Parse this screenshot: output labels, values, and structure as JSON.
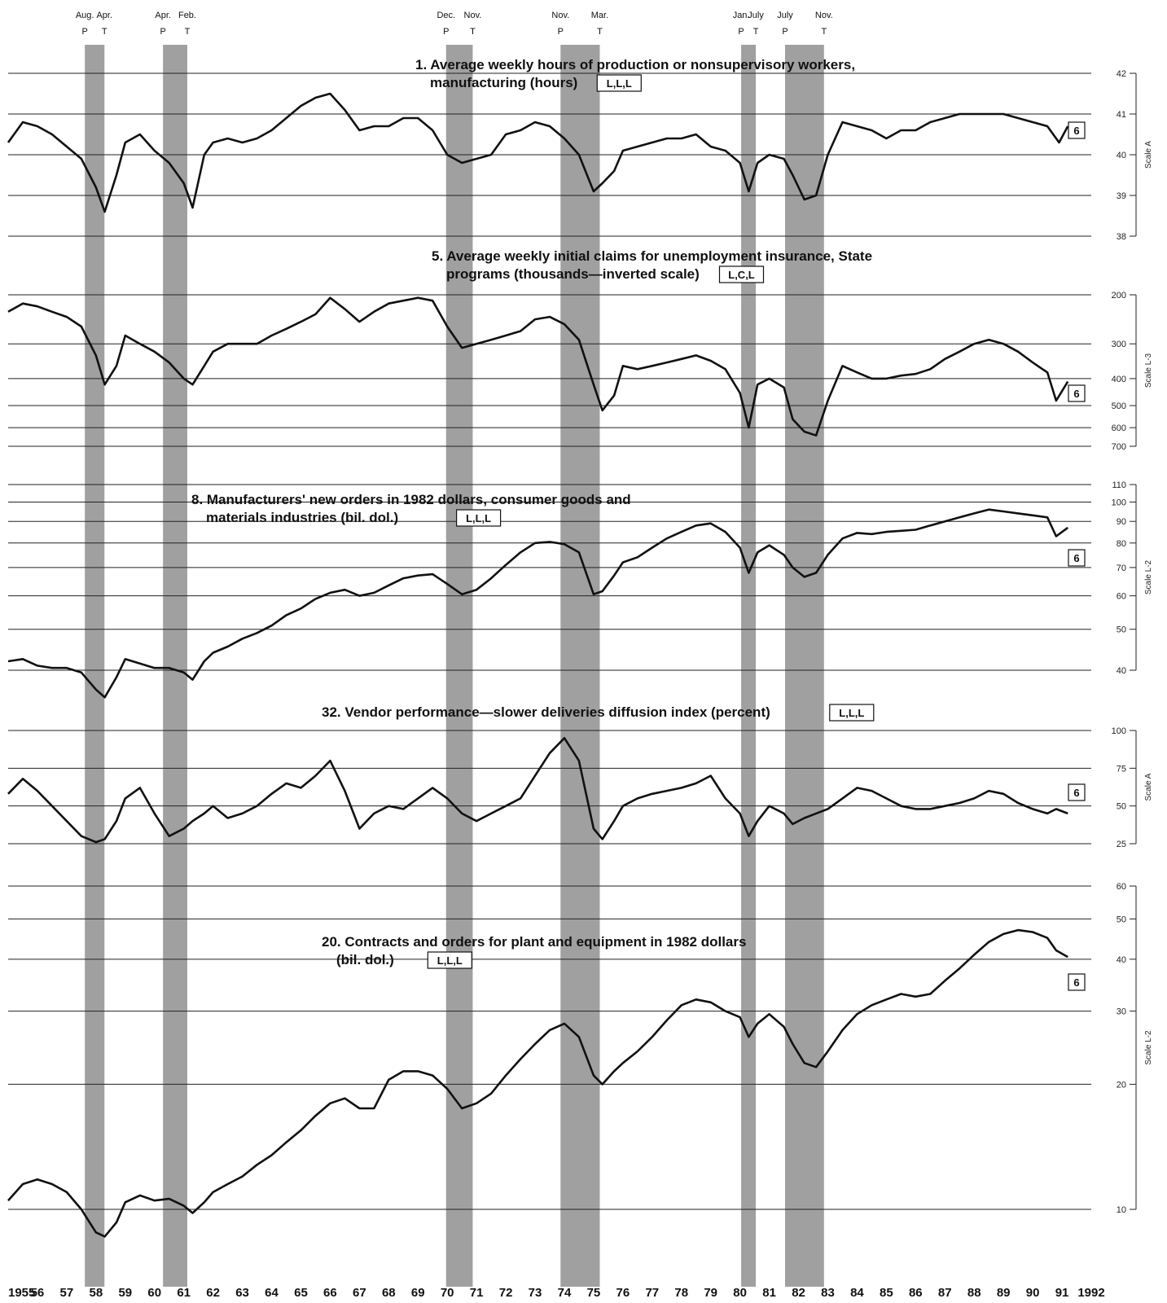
{
  "cycle_dates": [
    {
      "month": "Aug.",
      "type": "P",
      "year": 1957.62
    },
    {
      "month": "Apr.",
      "type": "T",
      "year": 1958.29
    },
    {
      "month": "Apr.",
      "type": "P",
      "year": 1960.29
    },
    {
      "month": "Feb.",
      "type": "T",
      "year": 1961.12
    },
    {
      "month": "Dec.",
      "type": "P",
      "year": 1969.96
    },
    {
      "month": "Nov.",
      "type": "T",
      "year": 1970.87
    },
    {
      "month": "Nov.",
      "type": "P",
      "year": 1973.87
    },
    {
      "month": "Mar.",
      "type": "T",
      "year": 1975.21
    },
    {
      "month": "Jan.",
      "type": "P",
      "year": 1980.04
    },
    {
      "month": "July",
      "type": "T",
      "year": 1980.54
    },
    {
      "month": "July",
      "type": "P",
      "year": 1981.54
    },
    {
      "month": "Nov.",
      "type": "T",
      "year": 1982.87
    }
  ],
  "recessions": [
    [
      1957.62,
      1958.29
    ],
    [
      1960.29,
      1961.12
    ],
    [
      1969.96,
      1970.87
    ],
    [
      1973.87,
      1975.21
    ],
    [
      1980.04,
      1980.54
    ],
    [
      1981.54,
      1982.87
    ]
  ],
  "x_axis_labels": [
    "1955",
    "56",
    "57",
    "58",
    "59",
    "60",
    "61",
    "62",
    "63",
    "64",
    "65",
    "66",
    "67",
    "68",
    "69",
    "70",
    "71",
    "72",
    "73",
    "74",
    "75",
    "76",
    "77",
    "78",
    "79",
    "80",
    "81",
    "82",
    "83",
    "84",
    "85",
    "86",
    "87",
    "88",
    "89",
    "90",
    "91",
    "1992"
  ],
  "chart_data": [
    {
      "type": "line",
      "title": "1. Average weekly hours of production or nonsupervisory workers, manufacturing (hours)",
      "title_lines": [
        "1. Average weekly hours of production or nonsupervisory workers,",
        "manufacturing (hours)"
      ],
      "code": "L,L,L",
      "scale_label": "Scale A",
      "scale_kind": "linear",
      "ylim": [
        38,
        42
      ],
      "y_ticks": [
        "42",
        "41",
        "40",
        "39",
        "38"
      ],
      "timing_box": "6",
      "x": [
        1955.0,
        1955.5,
        1956.0,
        1956.5,
        1957.0,
        1957.5,
        1958.0,
        1958.3,
        1958.7,
        1959.0,
        1959.5,
        1960.0,
        1960.5,
        1961.0,
        1961.3,
        1961.7,
        1962.0,
        1962.5,
        1963.0,
        1963.5,
        1964.0,
        1964.5,
        1965.0,
        1965.5,
        1966.0,
        1966.5,
        1967.0,
        1967.5,
        1968.0,
        1968.5,
        1969.0,
        1969.5,
        1970.0,
        1970.5,
        1971.0,
        1971.5,
        1972.0,
        1972.5,
        1973.0,
        1973.5,
        1974.0,
        1974.5,
        1975.0,
        1975.3,
        1975.7,
        1976.0,
        1976.5,
        1977.0,
        1977.5,
        1978.0,
        1978.5,
        1979.0,
        1979.5,
        1980.0,
        1980.3,
        1980.6,
        1981.0,
        1981.5,
        1981.8,
        1982.2,
        1982.6,
        1983.0,
        1983.5,
        1984.0,
        1984.5,
        1985.0,
        1985.5,
        1986.0,
        1986.5,
        1987.0,
        1987.5,
        1988.0,
        1988.5,
        1989.0,
        1989.5,
        1990.0,
        1990.5,
        1990.9,
        1991.2
      ],
      "values": [
        40.3,
        40.8,
        40.7,
        40.5,
        40.2,
        39.9,
        39.2,
        38.6,
        39.5,
        40.3,
        40.5,
        40.1,
        39.8,
        39.3,
        38.7,
        40.0,
        40.3,
        40.4,
        40.3,
        40.4,
        40.6,
        40.9,
        41.2,
        41.4,
        41.5,
        41.1,
        40.6,
        40.7,
        40.7,
        40.9,
        40.9,
        40.6,
        40.0,
        39.8,
        39.9,
        40.0,
        40.5,
        40.6,
        40.8,
        40.7,
        40.4,
        40.0,
        39.1,
        39.3,
        39.6,
        40.1,
        40.2,
        40.3,
        40.4,
        40.4,
        40.5,
        40.2,
        40.1,
        39.8,
        39.1,
        39.8,
        40.0,
        39.9,
        39.5,
        38.9,
        39.0,
        40.0,
        40.8,
        40.7,
        40.6,
        40.4,
        40.6,
        40.6,
        40.8,
        40.9,
        41.0,
        41.0,
        41.0,
        41.0,
        40.9,
        40.8,
        40.7,
        40.3,
        40.7
      ]
    },
    {
      "type": "line",
      "title": "5. Average weekly initial claims for unemployment insurance, State programs (thousands—inverted scale)",
      "title_lines": [
        "5. Average weekly initial claims for unemployment insurance, State",
        "programs (thousands—inverted scale)"
      ],
      "code": "L,C,L",
      "scale_label": "Scale L-3",
      "scale_kind": "log-inverted",
      "ylim": [
        200,
        700
      ],
      "y_ticks": [
        "200",
        "300",
        "400",
        "500",
        "600",
        "700"
      ],
      "timing_box": "6",
      "x": [
        1955.0,
        1955.5,
        1956.0,
        1956.5,
        1957.0,
        1957.5,
        1958.0,
        1958.3,
        1958.7,
        1959.0,
        1959.5,
        1960.0,
        1960.5,
        1961.0,
        1961.3,
        1961.7,
        1962.0,
        1962.5,
        1963.0,
        1963.5,
        1964.0,
        1964.5,
        1965.0,
        1965.5,
        1966.0,
        1966.5,
        1967.0,
        1967.5,
        1968.0,
        1968.5,
        1969.0,
        1969.5,
        1970.0,
        1970.5,
        1971.0,
        1971.5,
        1972.0,
        1972.5,
        1973.0,
        1973.5,
        1974.0,
        1974.5,
        1975.0,
        1975.3,
        1975.7,
        1976.0,
        1976.5,
        1977.0,
        1977.5,
        1978.0,
        1978.5,
        1979.0,
        1979.5,
        1980.0,
        1980.3,
        1980.6,
        1981.0,
        1981.5,
        1981.8,
        1982.2,
        1982.6,
        1983.0,
        1983.5,
        1984.0,
        1984.5,
        1985.0,
        1985.5,
        1986.0,
        1986.5,
        1987.0,
        1987.5,
        1988.0,
        1988.5,
        1989.0,
        1989.5,
        1990.0,
        1990.5,
        1990.8,
        1991.2
      ],
      "values": [
        230,
        215,
        220,
        230,
        240,
        260,
        330,
        420,
        360,
        280,
        300,
        320,
        350,
        400,
        420,
        360,
        320,
        300,
        300,
        300,
        280,
        265,
        250,
        235,
        205,
        225,
        250,
        230,
        215,
        210,
        205,
        210,
        260,
        310,
        300,
        290,
        280,
        270,
        245,
        240,
        255,
        290,
        420,
        520,
        460,
        360,
        370,
        360,
        350,
        340,
        330,
        345,
        370,
        450,
        600,
        420,
        400,
        430,
        560,
        620,
        640,
        480,
        360,
        380,
        400,
        400,
        390,
        385,
        370,
        340,
        320,
        300,
        290,
        300,
        320,
        350,
        380,
        480,
        410
      ]
    },
    {
      "type": "line",
      "title": "8. Manufacturers' new orders in 1982 dollars, consumer goods and materials industries (bil. dol.)",
      "title_lines": [
        "8. Manufacturers' new orders in 1982 dollars, consumer goods and",
        "materials industries (bil. dol.)"
      ],
      "code": "L,L,L",
      "scale_label": "Scale L-2",
      "scale_kind": "log",
      "ylim": [
        40,
        110
      ],
      "y_ticks": [
        "110",
        "100",
        "90",
        "80",
        "70",
        "60",
        "50",
        "40"
      ],
      "timing_box": "6",
      "x": [
        1955.0,
        1955.5,
        1956.0,
        1956.5,
        1957.0,
        1957.5,
        1958.0,
        1958.3,
        1958.7,
        1959.0,
        1959.5,
        1960.0,
        1960.5,
        1961.0,
        1961.3,
        1961.7,
        1962.0,
        1962.5,
        1963.0,
        1963.5,
        1964.0,
        1964.5,
        1965.0,
        1965.5,
        1966.0,
        1966.5,
        1967.0,
        1967.5,
        1968.0,
        1968.5,
        1969.0,
        1969.5,
        1970.0,
        1970.5,
        1971.0,
        1971.5,
        1972.0,
        1972.5,
        1973.0,
        1973.5,
        1974.0,
        1974.5,
        1975.0,
        1975.3,
        1975.7,
        1976.0,
        1976.5,
        1977.0,
        1977.5,
        1978.0,
        1978.5,
        1979.0,
        1979.5,
        1980.0,
        1980.3,
        1980.6,
        1981.0,
        1981.5,
        1981.8,
        1982.2,
        1982.6,
        1983.0,
        1983.5,
        1984.0,
        1984.5,
        1985.0,
        1985.5,
        1986.0,
        1986.5,
        1987.0,
        1987.5,
        1988.0,
        1988.5,
        1989.0,
        1989.5,
        1990.0,
        1990.5,
        1990.8,
        1991.2
      ],
      "values": [
        42.0,
        42.5,
        41.0,
        40.5,
        40.5,
        39.5,
        36.0,
        34.5,
        38.5,
        42.5,
        41.5,
        40.5,
        40.5,
        39.5,
        38.0,
        42.0,
        44.0,
        45.5,
        47.5,
        49.0,
        51.0,
        54.0,
        56.0,
        59.0,
        61.0,
        62.0,
        60.0,
        61.0,
        63.5,
        66.0,
        67.0,
        67.5,
        64.0,
        60.5,
        62.0,
        66.0,
        71.0,
        76.0,
        80.0,
        80.5,
        79.5,
        76.0,
        60.5,
        61.5,
        67.0,
        72.0,
        74.0,
        78.0,
        82.0,
        85.0,
        88.0,
        89.0,
        85.0,
        78.0,
        68.0,
        76.0,
        79.0,
        75.0,
        70.0,
        66.5,
        68.0,
        75.0,
        82.0,
        84.5,
        84.0,
        85.0,
        85.5,
        86.0,
        88.0,
        90.0,
        92.0,
        94.0,
        96.0,
        95.0,
        94.0,
        93.0,
        92.0,
        83.0,
        87.0
      ]
    },
    {
      "type": "line",
      "title": "32. Vendor performance—slower deliveries diffusion index (percent)",
      "title_lines": [
        "32. Vendor performance—slower deliveries diffusion index (percent)"
      ],
      "code": "L,L,L",
      "scale_label": "Scale A",
      "scale_kind": "linear",
      "ylim": [
        25,
        100
      ],
      "y_ticks": [
        "100",
        "75",
        "50",
        "25"
      ],
      "timing_box": "6",
      "x": [
        1955.0,
        1955.5,
        1956.0,
        1956.5,
        1957.0,
        1957.5,
        1958.0,
        1958.3,
        1958.7,
        1959.0,
        1959.5,
        1960.0,
        1960.5,
        1961.0,
        1961.3,
        1961.7,
        1962.0,
        1962.5,
        1963.0,
        1963.5,
        1964.0,
        1964.5,
        1965.0,
        1965.5,
        1966.0,
        1966.5,
        1967.0,
        1967.5,
        1968.0,
        1968.5,
        1969.0,
        1969.5,
        1970.0,
        1970.5,
        1971.0,
        1971.5,
        1972.0,
        1972.5,
        1973.0,
        1973.5,
        1974.0,
        1974.5,
        1975.0,
        1975.3,
        1975.7,
        1976.0,
        1976.5,
        1977.0,
        1977.5,
        1978.0,
        1978.5,
        1979.0,
        1979.5,
        1980.0,
        1980.3,
        1980.6,
        1981.0,
        1981.5,
        1981.8,
        1982.2,
        1982.6,
        1983.0,
        1983.5,
        1984.0,
        1984.5,
        1985.0,
        1985.5,
        1986.0,
        1986.5,
        1987.0,
        1987.5,
        1988.0,
        1988.5,
        1989.0,
        1989.5,
        1990.0,
        1990.5,
        1990.8,
        1991.2
      ],
      "values": [
        58,
        68,
        60,
        50,
        40,
        30,
        26,
        28,
        40,
        55,
        62,
        45,
        30,
        35,
        40,
        45,
        50,
        42,
        45,
        50,
        58,
        65,
        62,
        70,
        80,
        60,
        35,
        45,
        50,
        48,
        55,
        62,
        55,
        45,
        40,
        45,
        50,
        55,
        70,
        85,
        95,
        80,
        35,
        28,
        40,
        50,
        55,
        58,
        60,
        62,
        65,
        70,
        55,
        45,
        30,
        40,
        50,
        45,
        38,
        42,
        45,
        48,
        55,
        62,
        60,
        55,
        50,
        48,
        48,
        50,
        52,
        55,
        60,
        58,
        52,
        48,
        45,
        48,
        45
      ]
    },
    {
      "type": "line",
      "title": "20. Contracts and orders for plant and equipment in 1982 dollars (bil. dol.)",
      "title_lines": [
        "20. Contracts and orders for plant and equipment in 1982 dollars",
        "(bil. dol.)"
      ],
      "code": "L,L,L",
      "scale_label": "Scale L-2",
      "scale_kind": "log",
      "ylim": [
        10,
        60
      ],
      "y_ticks": [
        "60",
        "50",
        "40",
        "30",
        "20",
        "10"
      ],
      "timing_box": "6",
      "x": [
        1955.0,
        1955.5,
        1956.0,
        1956.5,
        1957.0,
        1957.5,
        1958.0,
        1958.3,
        1958.7,
        1959.0,
        1959.5,
        1960.0,
        1960.5,
        1961.0,
        1961.3,
        1961.7,
        1962.0,
        1962.5,
        1963.0,
        1963.5,
        1964.0,
        1964.5,
        1965.0,
        1965.5,
        1966.0,
        1966.5,
        1967.0,
        1967.5,
        1968.0,
        1968.5,
        1969.0,
        1969.5,
        1970.0,
        1970.5,
        1971.0,
        1971.5,
        1972.0,
        1972.5,
        1973.0,
        1973.5,
        1974.0,
        1974.5,
        1975.0,
        1975.3,
        1975.7,
        1976.0,
        1976.5,
        1977.0,
        1977.5,
        1978.0,
        1978.5,
        1979.0,
        1979.5,
        1980.0,
        1980.3,
        1980.6,
        1981.0,
        1981.5,
        1981.8,
        1982.2,
        1982.6,
        1983.0,
        1983.5,
        1984.0,
        1984.5,
        1985.0,
        1985.5,
        1986.0,
        1986.5,
        1987.0,
        1987.5,
        1988.0,
        1988.5,
        1989.0,
        1989.5,
        1990.0,
        1990.5,
        1990.8,
        1991.2
      ],
      "values": [
        10.5,
        11.5,
        11.8,
        11.5,
        11.0,
        10.0,
        8.8,
        8.6,
        9.3,
        10.4,
        10.8,
        10.5,
        10.6,
        10.2,
        9.8,
        10.4,
        11.0,
        11.5,
        12.0,
        12.8,
        13.5,
        14.5,
        15.5,
        16.8,
        18.0,
        18.5,
        17.5,
        17.5,
        20.5,
        21.5,
        21.5,
        21.0,
        19.5,
        17.5,
        18.0,
        19.0,
        21.0,
        23.0,
        25.0,
        27.0,
        28.0,
        26.0,
        21.0,
        20.0,
        21.5,
        22.5,
        24.0,
        26.0,
        28.5,
        31.0,
        32.0,
        31.5,
        30.0,
        29.0,
        26.0,
        28.0,
        29.5,
        27.5,
        25.0,
        22.5,
        22.0,
        24.0,
        27.0,
        29.5,
        31.0,
        32.0,
        33.0,
        32.5,
        33.0,
        35.5,
        38.0,
        41.0,
        44.0,
        46.0,
        47.0,
        46.5,
        45.0,
        42.0,
        40.5
      ]
    }
  ]
}
